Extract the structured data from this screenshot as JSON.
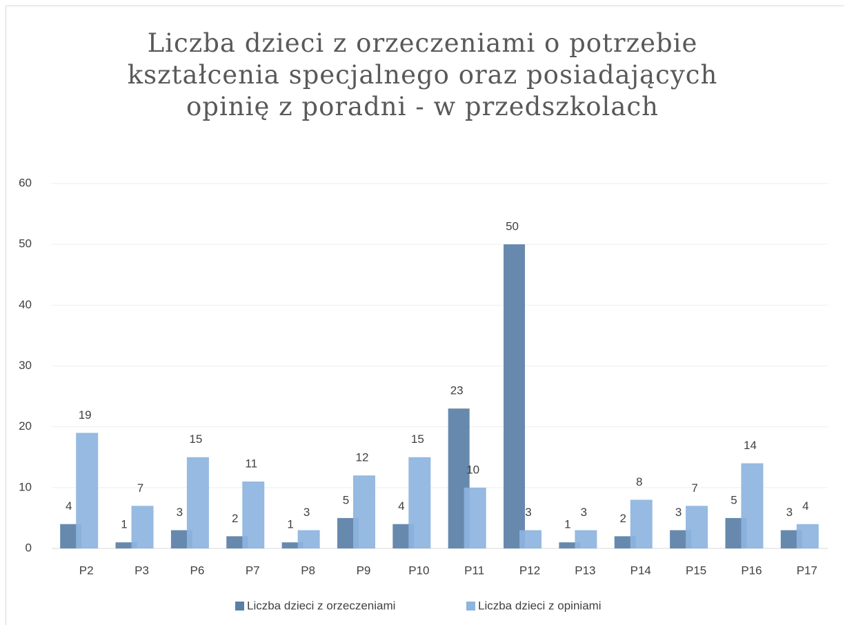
{
  "chart_data": {
    "type": "bar",
    "title": "Liczba dzieci z orzeczeniami o potrzebie kształcenia specjalnego oraz posiadających opinię z poradni - w przedszkolach",
    "categories": [
      "P2",
      "P3",
      "P6",
      "P7",
      "P8",
      "P9",
      "P10",
      "P11",
      "P12",
      "P13",
      "P14",
      "P15",
      "P16",
      "P17"
    ],
    "series": [
      {
        "name": "Liczba dzieci z orzeczeniami",
        "color": "#5a7fa6",
        "values": [
          4,
          1,
          3,
          2,
          1,
          5,
          4,
          23,
          50,
          1,
          2,
          3,
          5,
          3
        ]
      },
      {
        "name": "Liczba dzieci z opiniami",
        "color": "#8db4de",
        "values": [
          19,
          7,
          15,
          11,
          3,
          12,
          15,
          10,
          3,
          3,
          8,
          7,
          14,
          4
        ]
      }
    ],
    "ylim": [
      0,
      60
    ],
    "yticks": [
      0,
      10,
      20,
      30,
      40,
      50,
      60
    ],
    "grid": true,
    "legend": "bottom"
  }
}
